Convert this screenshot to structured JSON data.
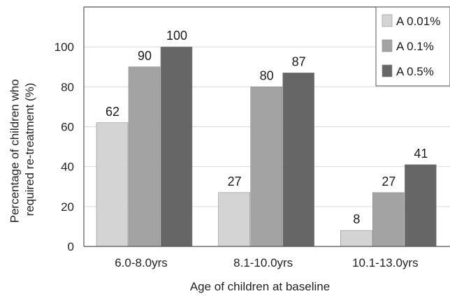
{
  "chart_data": {
    "type": "bar",
    "title": "",
    "xlabel": "Age of children at baseline",
    "ylabel_lines": [
      "Percentage of children who",
      "required re-treatment (%)"
    ],
    "categories": [
      "6.0-8.0yrs",
      "8.1-10.0yrs",
      "10.1-13.0yrs"
    ],
    "series": [
      {
        "name": "A 0.01%",
        "values": [
          62,
          27,
          8
        ],
        "color": "#d4d4d4"
      },
      {
        "name": "A 0.1%",
        "values": [
          90,
          80,
          27
        ],
        "color": "#a3a3a3"
      },
      {
        "name": "A 0.5%",
        "values": [
          100,
          87,
          41
        ],
        "color": "#666666"
      }
    ],
    "ylim": [
      0,
      120
    ],
    "yticks": [
      0,
      20,
      40,
      60,
      80,
      100
    ],
    "grid": true,
    "legend_position": "top-right"
  }
}
